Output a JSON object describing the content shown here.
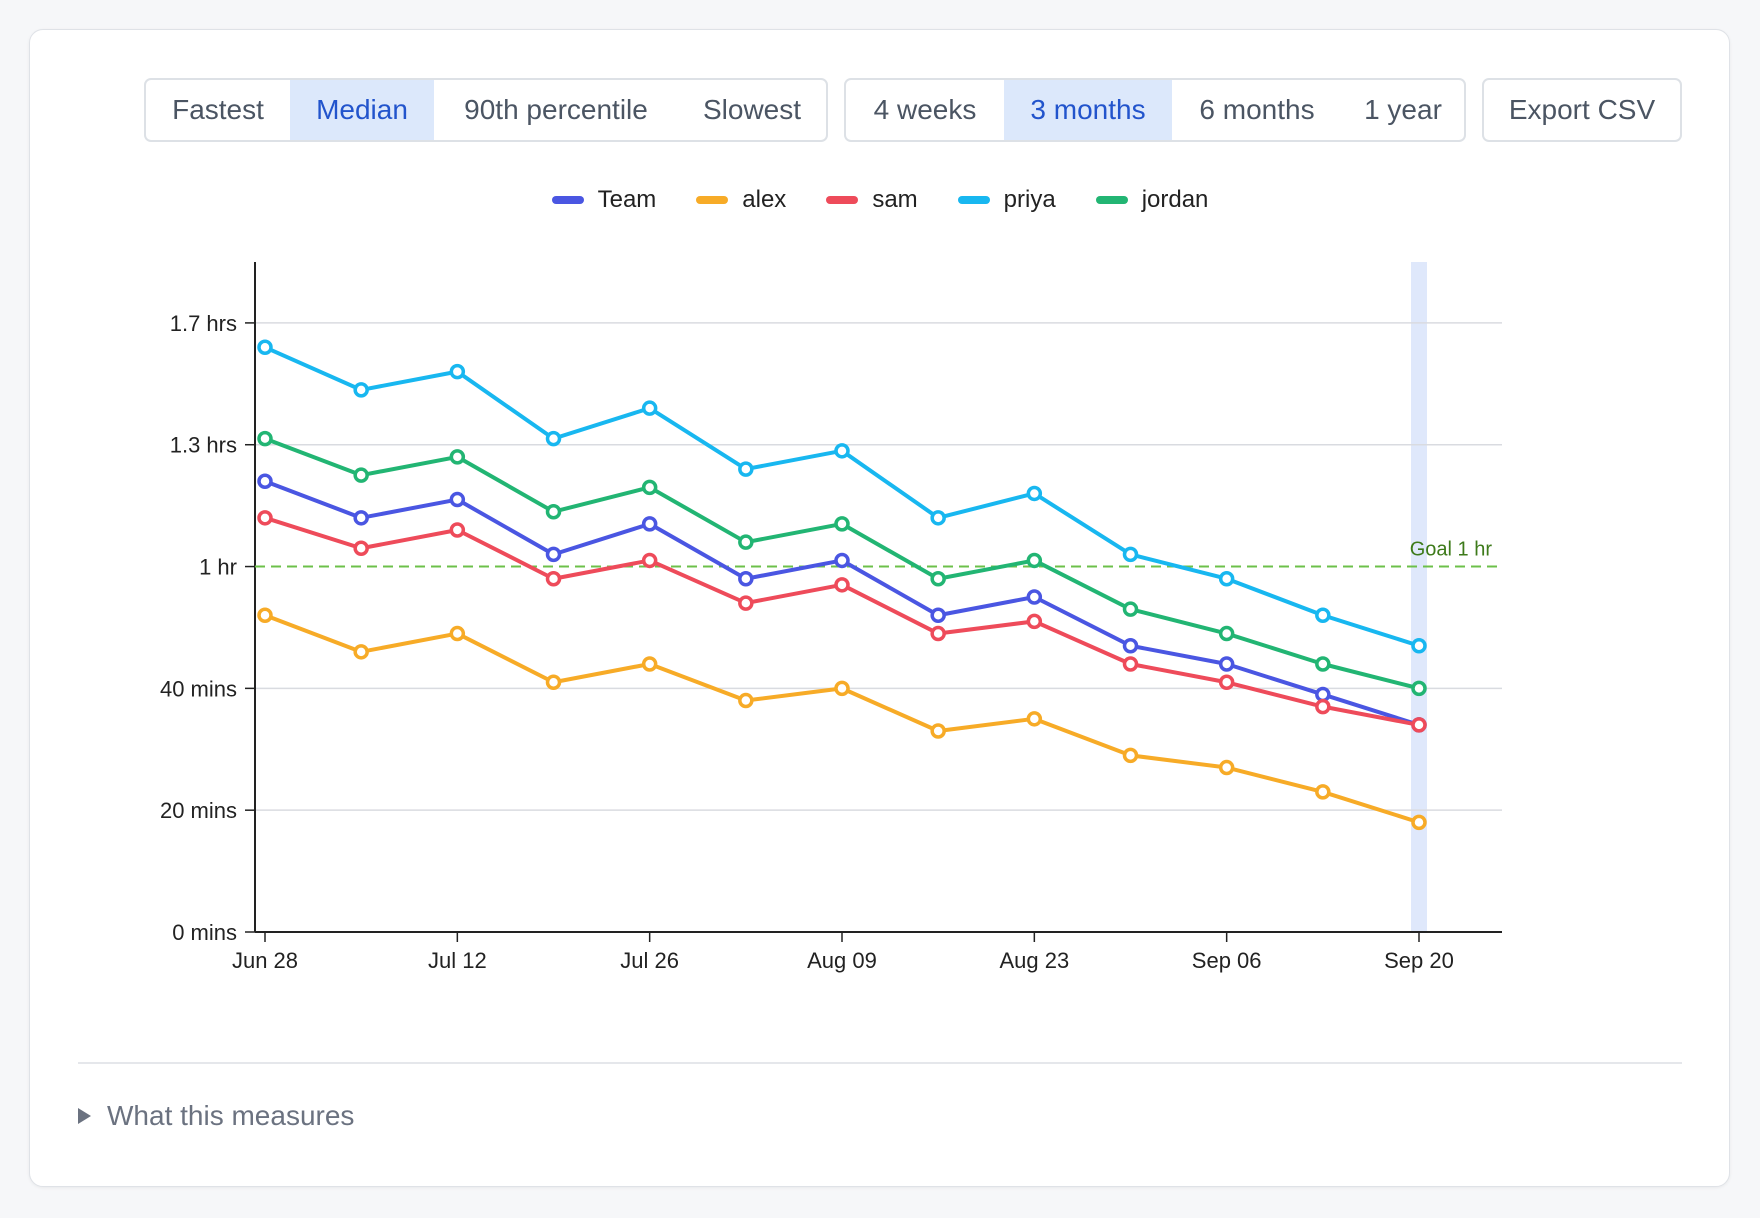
{
  "controls": {
    "metric_options": [
      "Fastest",
      "Median",
      "90th percentile",
      "Slowest"
    ],
    "metric_selected": "Median",
    "range_options": [
      "4 weeks",
      "3 months",
      "6 months",
      "1 year"
    ],
    "range_selected": "3 months",
    "export_label": "Export CSV"
  },
  "details_label": "What this measures",
  "chart_data": {
    "type": "line",
    "x": [
      "Jun 28",
      "Jul 05",
      "Jul 12",
      "Jul 19",
      "Jul 26",
      "Aug 02",
      "Aug 09",
      "Aug 16",
      "Aug 23",
      "Aug 30",
      "Sep 06",
      "Sep 13",
      "Sep 20"
    ],
    "x_tick_labels": [
      "Jun 28",
      "Jul 12",
      "Jul 26",
      "Aug 09",
      "Aug 23",
      "Sep 06",
      "Sep 20"
    ],
    "y_unit": "minutes",
    "ylim": [
      0,
      110
    ],
    "y_ticks": [
      {
        "value": 0,
        "label": "0 mins"
      },
      {
        "value": 20,
        "label": "20 mins"
      },
      {
        "value": 40,
        "label": "40 mins"
      },
      {
        "value": 60,
        "label": "1 hr"
      },
      {
        "value": 80,
        "label": "1.3 hrs"
      },
      {
        "value": 100,
        "label": "1.7 hrs"
      }
    ],
    "grid": true,
    "legend_position": "top-center",
    "reference_line": {
      "value": 60,
      "label": "Goal 1 hr",
      "color": "#6cc04a"
    },
    "highlight_x": "Sep 20",
    "series": [
      {
        "name": "Team",
        "color": "#4a56e2",
        "values": [
          74,
          68,
          71,
          62,
          67,
          58,
          61,
          52,
          55,
          47,
          44,
          39,
          34
        ]
      },
      {
        "name": "alex",
        "color": "#f7ab27",
        "values": [
          52,
          46,
          49,
          41,
          44,
          38,
          40,
          33,
          35,
          29,
          27,
          23,
          18
        ]
      },
      {
        "name": "sam",
        "color": "#ee4b5a",
        "values": [
          68,
          63,
          66,
          58,
          61,
          54,
          57,
          49,
          51,
          44,
          41,
          37,
          34
        ]
      },
      {
        "name": "priya",
        "color": "#18b7f0",
        "values": [
          96,
          89,
          92,
          81,
          86,
          76,
          79,
          68,
          72,
          62,
          58,
          52,
          47
        ]
      },
      {
        "name": "jordan",
        "color": "#22b573",
        "values": [
          81,
          75,
          78,
          69,
          73,
          64,
          67,
          58,
          61,
          53,
          49,
          44,
          40
        ]
      }
    ]
  }
}
